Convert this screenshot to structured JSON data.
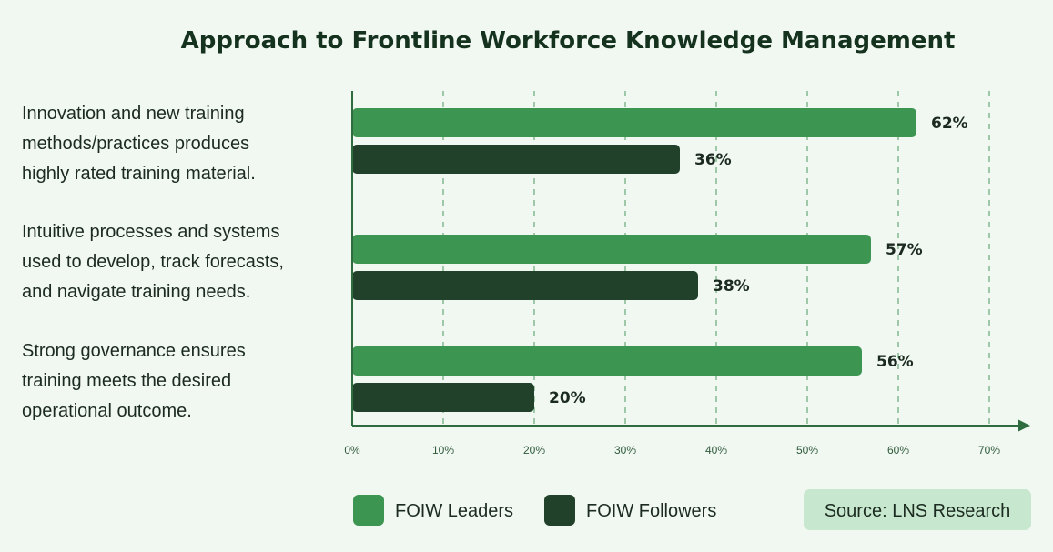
{
  "chart_data": {
    "type": "bar",
    "orientation": "horizontal",
    "title": "Approach to Frontline Workforce Knowledge Management",
    "categories": [
      [
        "Innovation and new training",
        "methods/practices produces",
        "highly rated training material."
      ],
      [
        "Intuitive processes and systems",
        "used to develop, track forecasts,",
        "and navigate training needs."
      ],
      [
        "Strong governance ensures",
        "training meets the desired",
        "operational outcome."
      ]
    ],
    "series": [
      {
        "name": "FOIW Leaders",
        "color": "#3d9552",
        "values": [
          62,
          57,
          56
        ],
        "labels": [
          "62%",
          "57%",
          "56%"
        ]
      },
      {
        "name": "FOIW Followers",
        "color": "#21412a",
        "values": [
          36,
          38,
          20
        ],
        "labels": [
          "36%",
          "38%",
          "20%"
        ]
      }
    ],
    "xlim": [
      0,
      70
    ],
    "xticks": [
      0,
      10,
      20,
      30,
      40,
      50,
      60,
      70
    ],
    "xtick_labels": [
      "0%",
      "10%",
      "20%",
      "30%",
      "40%",
      "50%",
      "60%",
      "70%"
    ],
    "grid": "vertical-dashed",
    "legend_position": "bottom"
  },
  "source": "Source: LNS Research",
  "colors": {
    "background": "#f1f7f1",
    "axis": "#2e6b3e",
    "grid": "#4c9a60",
    "source_box": "#c7e8cf"
  }
}
